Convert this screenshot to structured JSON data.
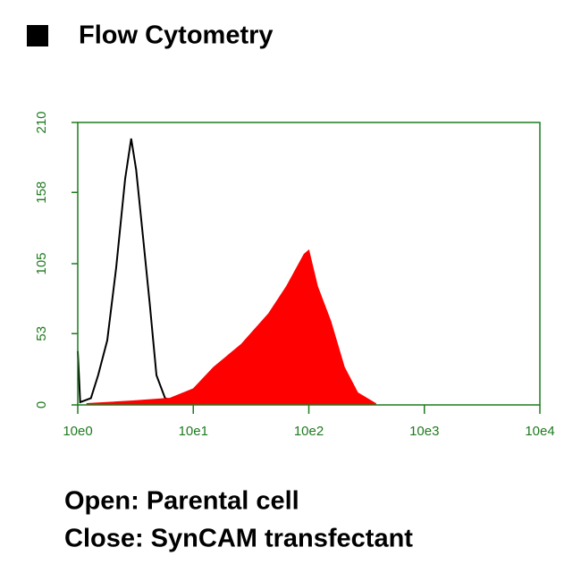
{
  "chart_data": {
    "type": "histogram-overlay",
    "title": "Flow Cytometry",
    "xlog": true,
    "xlim": [
      1,
      10000
    ],
    "xticks": [
      {
        "value": 1,
        "label": "10e0"
      },
      {
        "value": 10,
        "label": "10e1"
      },
      {
        "value": 100,
        "label": "10e2"
      },
      {
        "value": 1000,
        "label": "10e3"
      },
      {
        "value": 10000,
        "label": "10e4"
      }
    ],
    "ylim": [
      0,
      210
    ],
    "yticks": [
      0,
      53,
      105,
      158,
      210
    ],
    "axis_color": "#1f7a1f",
    "series": [
      {
        "style": "line",
        "color": "#000000",
        "x": [
          1.0,
          1.05,
          1.3,
          1.5,
          1.8,
          2.15,
          2.57,
          2.9,
          3.2,
          3.7,
          4.2,
          4.8,
          5.7,
          7.5
        ],
        "values": [
          40,
          2,
          5,
          22,
          48,
          102,
          168,
          198,
          175,
          122,
          75,
          22,
          5,
          1
        ]
      },
      {
        "style": "area",
        "color": "#ff0000",
        "x": [
          1.2,
          3,
          6.3,
          10,
          15,
          26,
          45,
          64,
          91,
          100,
          119,
          155,
          203,
          265,
          380
        ],
        "values": [
          1,
          3,
          5,
          12,
          28,
          45,
          68,
          88,
          112,
          115,
          88,
          62,
          28,
          9,
          1
        ]
      }
    ],
    "annotations": [
      "Open: Parental cell",
      "Close: SynCAM transfectant"
    ]
  }
}
